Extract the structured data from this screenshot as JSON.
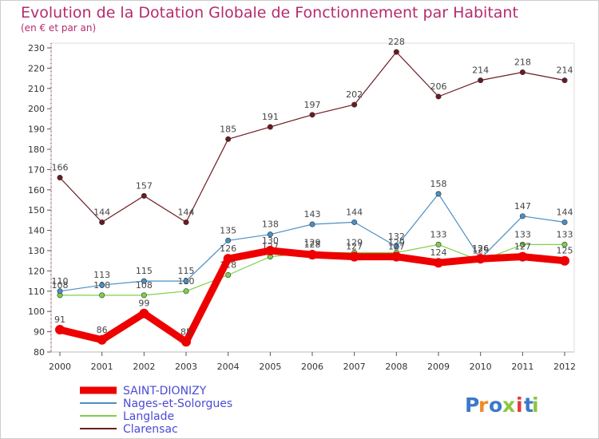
{
  "chart_data": {
    "type": "line",
    "title": "Evolution de la Dotation Globale de Fonctionnement par Habitant",
    "subtitle": "(en € et par an)",
    "xlabel": "",
    "ylabel": "",
    "categories": [
      "2000",
      "2001",
      "2002",
      "2003",
      "2004",
      "2005",
      "2006",
      "2007",
      "2008",
      "2009",
      "2010",
      "2011",
      "2012"
    ],
    "ylim": [
      80,
      230
    ],
    "yticks": [
      80,
      90,
      100,
      110,
      120,
      130,
      140,
      150,
      160,
      170,
      180,
      190,
      200,
      210,
      220,
      230
    ],
    "grid": false,
    "legend": "bottom-left",
    "series": [
      {
        "name": "SAINT-DIONIZY",
        "color": "#ee0000",
        "values": [
          91,
          86,
          99,
          85,
          126,
          130,
          128,
          127,
          127,
          124,
          126,
          127,
          125
        ]
      },
      {
        "name": "Nages-et-Solorgues",
        "color": "#4b8fc4",
        "values": [
          110,
          113,
          115,
          115,
          135,
          138,
          143,
          144,
          132,
          158,
          126,
          147,
          144
        ]
      },
      {
        "name": "Langlade",
        "color": "#7ed04b",
        "values": [
          108,
          108,
          108,
          110,
          118,
          127,
          129,
          129,
          129,
          133,
          125,
          133,
          133
        ]
      },
      {
        "name": "Clarensac",
        "color": "#6b1a20",
        "values": [
          166,
          144,
          157,
          144,
          185,
          191,
          197,
          202,
          228,
          206,
          214,
          218,
          214
        ]
      }
    ]
  },
  "logo": {
    "letters": [
      "P",
      "r",
      "o",
      "x",
      "i",
      "t",
      "i"
    ],
    "colors": [
      "#3b79c9",
      "#f08a24",
      "#3b79c9",
      "#8dc63f",
      "#e23a3a",
      "#3b79c9",
      "#8dc63f"
    ]
  }
}
